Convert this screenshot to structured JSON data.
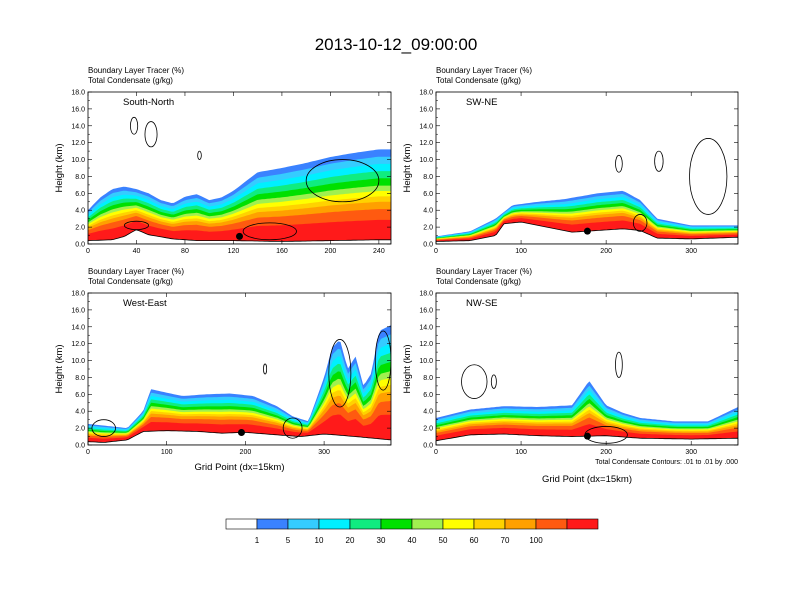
{
  "figure": {
    "title": "2013-10-12_09:00:00"
  },
  "colors": {
    "scale": [
      "#ffffff",
      "#3a82ff",
      "#35ccff",
      "#00f0ff",
      "#10ec80",
      "#00e000",
      "#a0f050",
      "#ffff00",
      "#ffd200",
      "#ffa000",
      "#ff5a10",
      "#ff1a1a"
    ],
    "terrain": "#ffffff",
    "contour": "#000000"
  },
  "chart_data": [
    {
      "type": "heatmap",
      "panel": "South-North",
      "header": [
        "Boundary Layer Tracer   (%)",
        "Total Condensate   (g/kg)"
      ],
      "xlabel": "",
      "ylabel": "Height (km)",
      "xlim": [
        0,
        250
      ],
      "ylim": [
        0,
        18
      ],
      "xticks": [
        "0",
        "40",
        "80",
        "120",
        "160",
        "200",
        "240"
      ],
      "yticks": [
        "0.0",
        "2.0",
        "4.0",
        "6.0",
        "8.0",
        "10.0",
        "12.0",
        "14.0",
        "16.0",
        "18.0"
      ],
      "marker_x": 125,
      "terrain": [
        [
          0,
          0.4
        ],
        [
          20,
          0.5
        ],
        [
          30,
          0.9
        ],
        [
          40,
          1.7
        ],
        [
          50,
          1.1
        ],
        [
          70,
          0.6
        ],
        [
          90,
          0.4
        ],
        [
          120,
          0.4
        ],
        [
          160,
          0.3
        ],
        [
          200,
          0.4
        ],
        [
          240,
          0.5
        ],
        [
          250,
          0.5
        ]
      ],
      "plume_top": [
        [
          0,
          4.0
        ],
        [
          10,
          5.5
        ],
        [
          20,
          6.5
        ],
        [
          30,
          6.8
        ],
        [
          40,
          6.5
        ],
        [
          50,
          6.0
        ],
        [
          60,
          5.2
        ],
        [
          70,
          4.8
        ],
        [
          80,
          5.6
        ],
        [
          90,
          5.9
        ],
        [
          100,
          5.2
        ],
        [
          110,
          5.5
        ],
        [
          120,
          6.3
        ],
        [
          130,
          7.4
        ],
        [
          140,
          8.5
        ],
        [
          160,
          9.0
        ],
        [
          180,
          9.6
        ],
        [
          200,
          10.3
        ],
        [
          220,
          10.8
        ],
        [
          240,
          11.2
        ],
        [
          250,
          11.2
        ]
      ],
      "contours": [
        {
          "cx": 38,
          "cy": 14.0,
          "rx": 3,
          "ry": 1.0
        },
        {
          "cx": 52,
          "cy": 13.0,
          "rx": 5,
          "ry": 1.5
        },
        {
          "cx": 92,
          "cy": 10.5,
          "rx": 1.5,
          "ry": 0.5
        },
        {
          "cx": 210,
          "cy": 7.5,
          "rx": 30,
          "ry": 2.5
        },
        {
          "cx": 40,
          "cy": 2.2,
          "rx": 10,
          "ry": 0.5
        },
        {
          "cx": 150,
          "cy": 1.5,
          "rx": 22,
          "ry": 1.0
        }
      ]
    },
    {
      "type": "heatmap",
      "panel": "SW-NE",
      "header": [
        "Boundary Layer Tracer   (%)",
        "Total Condensate   (g/kg)"
      ],
      "xlabel": "",
      "ylabel": "Height (km)",
      "xlim": [
        0,
        355
      ],
      "ylim": [
        0,
        18
      ],
      "xticks": [
        "0",
        "100",
        "200",
        "300"
      ],
      "yticks": [
        "0.0",
        "2.0",
        "4.0",
        "6.0",
        "8.0",
        "10.0",
        "12.0",
        "14.0",
        "16.0",
        "18.0"
      ],
      "marker_x": 178,
      "terrain": [
        [
          0,
          0.3
        ],
        [
          40,
          0.4
        ],
        [
          70,
          1.0
        ],
        [
          80,
          2.4
        ],
        [
          100,
          2.6
        ],
        [
          130,
          2.0
        ],
        [
          160,
          1.4
        ],
        [
          190,
          1.6
        ],
        [
          220,
          1.8
        ],
        [
          240,
          1.6
        ],
        [
          260,
          0.7
        ],
        [
          300,
          0.6
        ],
        [
          355,
          0.8
        ]
      ],
      "plume_top": [
        [
          0,
          0.9
        ],
        [
          40,
          1.5
        ],
        [
          70,
          3.0
        ],
        [
          90,
          4.6
        ],
        [
          120,
          5.0
        ],
        [
          150,
          5.3
        ],
        [
          190,
          6.0
        ],
        [
          220,
          6.3
        ],
        [
          240,
          5.2
        ],
        [
          260,
          3.0
        ],
        [
          300,
          2.2
        ],
        [
          355,
          2.2
        ]
      ],
      "contours": [
        {
          "cx": 215,
          "cy": 9.5,
          "rx": 4,
          "ry": 1.0
        },
        {
          "cx": 262,
          "cy": 9.8,
          "rx": 5,
          "ry": 1.2
        },
        {
          "cx": 320,
          "cy": 8.0,
          "rx": 22,
          "ry": 4.5
        },
        {
          "cx": 240,
          "cy": 2.5,
          "rx": 8,
          "ry": 1.0
        }
      ]
    },
    {
      "type": "heatmap",
      "panel": "West-East",
      "header": [
        "Boundary Layer Tracer   (%)",
        "Total Condensate   (g/kg)"
      ],
      "xlabel": "Grid Point (dx=15km)",
      "ylabel": "Height (km)",
      "xlim": [
        0,
        385
      ],
      "ylim": [
        0,
        18
      ],
      "xticks": [
        "0",
        "100",
        "200",
        "300"
      ],
      "yticks": [
        "0.0",
        "2.0",
        "4.0",
        "6.0",
        "8.0",
        "10.0",
        "12.0",
        "14.0",
        "16.0",
        "18.0"
      ],
      "marker_x": 195,
      "terrain": [
        [
          0,
          0.4
        ],
        [
          20,
          0.3
        ],
        [
          50,
          0.6
        ],
        [
          70,
          1.6
        ],
        [
          100,
          1.7
        ],
        [
          140,
          1.6
        ],
        [
          170,
          1.4
        ],
        [
          200,
          1.5
        ],
        [
          240,
          1.2
        ],
        [
          270,
          1.0
        ],
        [
          300,
          1.3
        ],
        [
          340,
          1.0
        ],
        [
          385,
          0.6
        ]
      ],
      "plume_top": [
        [
          0,
          2.5
        ],
        [
          30,
          2.2
        ],
        [
          50,
          2.0
        ],
        [
          70,
          4.0
        ],
        [
          80,
          6.6
        ],
        [
          100,
          6.2
        ],
        [
          120,
          5.8
        ],
        [
          150,
          6.0
        ],
        [
          180,
          6.1
        ],
        [
          210,
          5.8
        ],
        [
          240,
          4.6
        ],
        [
          260,
          3.4
        ],
        [
          280,
          2.8
        ],
        [
          300,
          8.0
        ],
        [
          310,
          11.5
        ],
        [
          320,
          12.5
        ],
        [
          330,
          9.0
        ],
        [
          340,
          10.5
        ],
        [
          350,
          7.0
        ],
        [
          360,
          8.5
        ],
        [
          370,
          13.5
        ],
        [
          385,
          14.2
        ]
      ],
      "contours": [
        {
          "cx": 225,
          "cy": 9.0,
          "rx": 2,
          "ry": 0.6
        },
        {
          "cx": 320,
          "cy": 8.5,
          "rx": 14,
          "ry": 4.0
        },
        {
          "cx": 375,
          "cy": 10.0,
          "rx": 10,
          "ry": 3.5
        },
        {
          "cx": 20,
          "cy": 2.0,
          "rx": 15,
          "ry": 1.0
        },
        {
          "cx": 260,
          "cy": 2.0,
          "rx": 12,
          "ry": 1.2
        }
      ]
    },
    {
      "type": "heatmap",
      "panel": "NW-SE",
      "header": [
        "Boundary Layer Tracer   (%)",
        "Total Condensate   (g/kg)"
      ],
      "xlabel": "Grid Point (dx=15km)",
      "ylabel": "Height (km)",
      "xlim": [
        0,
        355
      ],
      "ylim": [
        0,
        18
      ],
      "xticks": [
        "0",
        "100",
        "200",
        "300"
      ],
      "yticks": [
        "0.0",
        "2.0",
        "4.0",
        "6.0",
        "8.0",
        "10.0",
        "12.0",
        "14.0",
        "16.0",
        "18.0"
      ],
      "marker_x": 178,
      "terrain": [
        [
          0,
          0.5
        ],
        [
          40,
          1.2
        ],
        [
          80,
          1.3
        ],
        [
          120,
          1.1
        ],
        [
          160,
          1.0
        ],
        [
          200,
          1.1
        ],
        [
          240,
          0.8
        ],
        [
          300,
          0.7
        ],
        [
          355,
          0.8
        ]
      ],
      "plume_top": [
        [
          0,
          3.2
        ],
        [
          40,
          4.2
        ],
        [
          80,
          4.6
        ],
        [
          120,
          4.5
        ],
        [
          160,
          4.7
        ],
        [
          180,
          7.6
        ],
        [
          200,
          4.7
        ],
        [
          220,
          3.8
        ],
        [
          240,
          3.2
        ],
        [
          280,
          2.8
        ],
        [
          320,
          2.8
        ],
        [
          355,
          4.5
        ]
      ],
      "contours": [
        {
          "cx": 45,
          "cy": 7.5,
          "rx": 15,
          "ry": 2.0
        },
        {
          "cx": 215,
          "cy": 9.5,
          "rx": 4,
          "ry": 1.5
        },
        {
          "cx": 68,
          "cy": 7.5,
          "rx": 3,
          "ry": 0.8
        },
        {
          "cx": 200,
          "cy": 1.2,
          "rx": 25,
          "ry": 1.0
        }
      ]
    }
  ],
  "footnote": "Total Condensate Contours: .01 to .01 by .000",
  "colorbar": {
    "labels": [
      "1",
      "5",
      "10",
      "20",
      "30",
      "40",
      "50",
      "60",
      "70",
      "100"
    ]
  }
}
